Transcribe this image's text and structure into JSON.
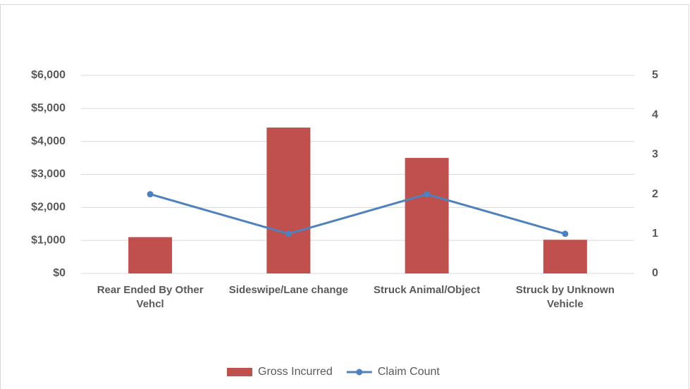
{
  "chart_data": {
    "type": "bar",
    "categories": [
      "Rear Ended By Other Vehcl",
      "Sideswipe/Lane change",
      "Struck Animal/Object",
      "Struck by Unknown Vehicle"
    ],
    "series": [
      {
        "name": "Gross Incurred",
        "type": "bar",
        "color": "#c0504d",
        "values": [
          1100,
          4420,
          3500,
          1020
        ]
      },
      {
        "name": "Claim Count",
        "type": "line",
        "axis": "y2",
        "color": "#4f81bd",
        "values": [
          2,
          1,
          2,
          1
        ]
      }
    ],
    "ylim": [
      0,
      6000
    ],
    "yticks": [
      {
        "value": 0,
        "label": "$0"
      },
      {
        "value": 1000,
        "label": "$1,000"
      },
      {
        "value": 2000,
        "label": "$2,000"
      },
      {
        "value": 3000,
        "label": "$3,000"
      },
      {
        "value": 4000,
        "label": "$4,000"
      },
      {
        "value": 5000,
        "label": "$5,000"
      },
      {
        "value": 6000,
        "label": "$6,000"
      }
    ],
    "y2lim": [
      0,
      5
    ],
    "y2ticks": [
      0,
      1,
      2,
      3,
      4,
      5
    ],
    "grid": true,
    "legend": "bottom"
  }
}
